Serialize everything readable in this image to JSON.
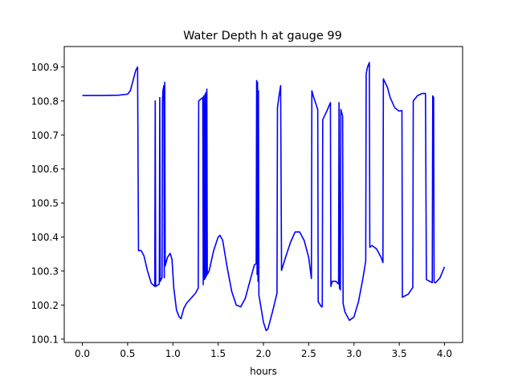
{
  "chart_data": {
    "type": "line",
    "title": "Water Depth h at gauge 99",
    "xlabel": "hours",
    "ylabel": "",
    "xlim": [
      -0.2,
      4.2
    ],
    "ylim": [
      100.09,
      100.96
    ],
    "xticks": [
      0.0,
      0.5,
      1.0,
      1.5,
      2.0,
      2.5,
      3.0,
      3.5,
      4.0
    ],
    "xtick_labels": [
      "0.0",
      "0.5",
      "1.0",
      "1.5",
      "2.0",
      "2.5",
      "3.0",
      "3.5",
      "4.0"
    ],
    "yticks": [
      100.1,
      100.2,
      100.3,
      100.4,
      100.5,
      100.6,
      100.7,
      100.8,
      100.9
    ],
    "ytick_labels": [
      "100.1",
      "100.2",
      "100.3",
      "100.4",
      "100.5",
      "100.6",
      "100.7",
      "100.8",
      "100.9"
    ],
    "grid": false,
    "series": [
      {
        "name": "",
        "color": "#0000ff",
        "points": [
          [
            0.0,
            100.816
          ],
          [
            0.2,
            100.816
          ],
          [
            0.4,
            100.817
          ],
          [
            0.5,
            100.82
          ],
          [
            0.53,
            100.83
          ],
          [
            0.56,
            100.86
          ],
          [
            0.59,
            100.89
          ],
          [
            0.61,
            100.9
          ],
          [
            0.62,
            100.36
          ],
          [
            0.65,
            100.36
          ],
          [
            0.68,
            100.345
          ],
          [
            0.72,
            100.3
          ],
          [
            0.76,
            100.265
          ],
          [
            0.8,
            100.255
          ],
          [
            0.805,
            100.8
          ],
          [
            0.81,
            100.255
          ],
          [
            0.85,
            100.262
          ],
          [
            0.855,
            100.81
          ],
          [
            0.86,
            100.27
          ],
          [
            0.88,
            100.28
          ],
          [
            0.885,
            100.8
          ],
          [
            0.89,
            100.83
          ],
          [
            0.9,
            100.845
          ],
          [
            0.905,
            100.28
          ],
          [
            0.91,
            100.855
          ],
          [
            0.915,
            100.315
          ],
          [
            0.94,
            100.34
          ],
          [
            0.97,
            100.352
          ],
          [
            0.99,
            100.335
          ],
          [
            1.01,
            100.25
          ],
          [
            1.04,
            100.185
          ],
          [
            1.07,
            100.165
          ],
          [
            1.09,
            100.16
          ],
          [
            1.12,
            100.19
          ],
          [
            1.15,
            100.205
          ],
          [
            1.2,
            100.22
          ],
          [
            1.25,
            100.235
          ],
          [
            1.28,
            100.25
          ],
          [
            1.285,
            100.8
          ],
          [
            1.33,
            100.81
          ],
          [
            1.335,
            100.26
          ],
          [
            1.34,
            100.815
          ],
          [
            1.35,
            100.275
          ],
          [
            1.355,
            100.82
          ],
          [
            1.36,
            100.28
          ],
          [
            1.365,
            100.825
          ],
          [
            1.37,
            100.285
          ],
          [
            1.375,
            100.835
          ],
          [
            1.38,
            100.29
          ],
          [
            1.4,
            100.3
          ],
          [
            1.45,
            100.36
          ],
          [
            1.5,
            100.4
          ],
          [
            1.52,
            100.405
          ],
          [
            1.55,
            100.39
          ],
          [
            1.6,
            100.31
          ],
          [
            1.65,
            100.24
          ],
          [
            1.7,
            100.2
          ],
          [
            1.75,
            100.195
          ],
          [
            1.8,
            100.22
          ],
          [
            1.85,
            100.27
          ],
          [
            1.9,
            100.318
          ],
          [
            1.92,
            100.322
          ],
          [
            1.925,
            100.86
          ],
          [
            1.93,
            100.29
          ],
          [
            1.935,
            100.855
          ],
          [
            1.94,
            100.27
          ],
          [
            1.945,
            100.83
          ],
          [
            1.95,
            100.23
          ],
          [
            2.0,
            100.15
          ],
          [
            2.03,
            100.125
          ],
          [
            2.05,
            100.13
          ],
          [
            2.1,
            100.18
          ],
          [
            2.15,
            100.235
          ],
          [
            2.155,
            100.78
          ],
          [
            2.17,
            100.81
          ],
          [
            2.19,
            100.845
          ],
          [
            2.2,
            100.302
          ],
          [
            2.25,
            100.345
          ],
          [
            2.3,
            100.385
          ],
          [
            2.35,
            100.415
          ],
          [
            2.4,
            100.415
          ],
          [
            2.45,
            100.39
          ],
          [
            2.5,
            100.34
          ],
          [
            2.53,
            100.278
          ],
          [
            2.535,
            100.83
          ],
          [
            2.55,
            100.815
          ],
          [
            2.6,
            100.775
          ],
          [
            2.605,
            100.21
          ],
          [
            2.64,
            100.195
          ],
          [
            2.65,
            100.195
          ],
          [
            2.655,
            100.745
          ],
          [
            2.7,
            100.77
          ],
          [
            2.74,
            100.795
          ],
          [
            2.745,
            100.255
          ],
          [
            2.76,
            100.27
          ],
          [
            2.8,
            100.27
          ],
          [
            2.83,
            100.262
          ],
          [
            2.835,
            100.795
          ],
          [
            2.84,
            100.25
          ],
          [
            2.85,
            100.245
          ],
          [
            2.855,
            100.775
          ],
          [
            2.865,
            100.765
          ],
          [
            2.875,
            100.755
          ],
          [
            2.88,
            100.205
          ],
          [
            2.9,
            100.18
          ],
          [
            2.95,
            100.155
          ],
          [
            3.0,
            100.165
          ],
          [
            3.05,
            100.21
          ],
          [
            3.1,
            100.28
          ],
          [
            3.13,
            100.33
          ],
          [
            3.135,
            100.88
          ],
          [
            3.15,
            100.9
          ],
          [
            3.17,
            100.913
          ],
          [
            3.175,
            100.37
          ],
          [
            3.2,
            100.375
          ],
          [
            3.25,
            100.365
          ],
          [
            3.3,
            100.34
          ],
          [
            3.32,
            100.325
          ],
          [
            3.325,
            100.865
          ],
          [
            3.37,
            100.84
          ],
          [
            3.4,
            100.81
          ],
          [
            3.45,
            100.78
          ],
          [
            3.5,
            100.77
          ],
          [
            3.53,
            100.772
          ],
          [
            3.535,
            100.223
          ],
          [
            3.6,
            100.232
          ],
          [
            3.65,
            100.252
          ],
          [
            3.655,
            100.8
          ],
          [
            3.7,
            100.815
          ],
          [
            3.75,
            100.822
          ],
          [
            3.79,
            100.822
          ],
          [
            3.8,
            100.275
          ],
          [
            3.85,
            100.268
          ],
          [
            3.865,
            100.266
          ],
          [
            3.87,
            100.815
          ],
          [
            3.88,
            100.81
          ],
          [
            3.885,
            100.268
          ],
          [
            3.9,
            100.265
          ],
          [
            3.95,
            100.28
          ],
          [
            4.0,
            100.312
          ]
        ]
      }
    ]
  }
}
